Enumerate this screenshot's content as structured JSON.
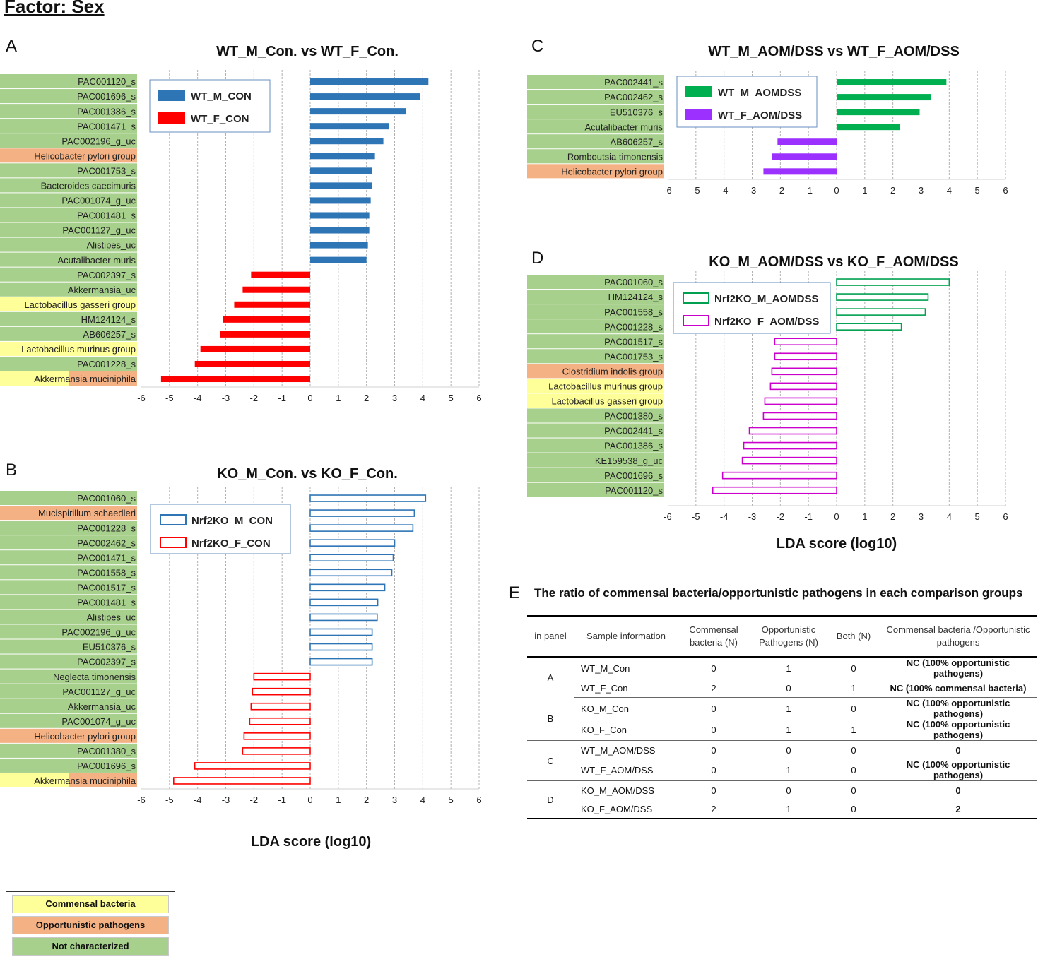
{
  "title": "Factor: Sex",
  "colors": {
    "not_characterized": "#a8d08d",
    "opportunistic": "#f4b183",
    "commensal": "#ffff99",
    "wt_m_con": "#2e75b6",
    "wt_f_con": "#ff0000",
    "wt_m_aomdss": "#00b050",
    "wt_f_aomdss": "#9b30ff",
    "nrf2ko_m_aomdss": "#00a050",
    "nrf2ko_f_aomdss": "#cc00cc"
  },
  "chart_data": [
    {
      "panel": "A",
      "type": "bar",
      "orientation": "horizontal",
      "title": "WT_M_Con. vs WT_F_Con.",
      "xlabel": "",
      "xlim": [
        -6,
        6
      ],
      "xticks": [
        -6,
        -5,
        -4,
        -3,
        -2,
        -1,
        0,
        1,
        2,
        3,
        4,
        5,
        6
      ],
      "grid": true,
      "legend": "top-left",
      "series": [
        {
          "name": "WT_M_CON",
          "style": "filled",
          "color": "#2e75b6"
        },
        {
          "name": "WT_F_CON",
          "style": "filled",
          "color": "#ff0000"
        }
      ],
      "rows": [
        {
          "label": "PAC001120_s",
          "value": 4.2,
          "series": 0,
          "category": "not_characterized"
        },
        {
          "label": "PAC001696_s",
          "value": 3.9,
          "series": 0,
          "category": "not_characterized"
        },
        {
          "label": "PAC001386_s",
          "value": 3.4,
          "series": 0,
          "category": "not_characterized"
        },
        {
          "label": "PAC001471_s",
          "value": 2.8,
          "series": 0,
          "category": "not_characterized"
        },
        {
          "label": "PAC002196_g_uc",
          "value": 2.6,
          "series": 0,
          "category": "not_characterized"
        },
        {
          "label": "Helicobacter pylori group",
          "value": 2.3,
          "series": 0,
          "category": "opportunistic"
        },
        {
          "label": "PAC001753_s",
          "value": 2.2,
          "series": 0,
          "category": "not_characterized"
        },
        {
          "label": "Bacteroides caecimuris",
          "value": 2.2,
          "series": 0,
          "category": "not_characterized"
        },
        {
          "label": "PAC001074_g_uc",
          "value": 2.15,
          "series": 0,
          "category": "not_characterized"
        },
        {
          "label": "PAC001481_s",
          "value": 2.1,
          "series": 0,
          "category": "not_characterized"
        },
        {
          "label": "PAC001127_g_uc",
          "value": 2.1,
          "series": 0,
          "category": "not_characterized"
        },
        {
          "label": "Alistipes_uc",
          "value": 2.05,
          "series": 0,
          "category": "not_characterized"
        },
        {
          "label": "Acutalibacter muris",
          "value": 2.0,
          "series": 0,
          "category": "not_characterized"
        },
        {
          "label": "PAC002397_s",
          "value": -2.1,
          "series": 1,
          "category": "not_characterized"
        },
        {
          "label": "Akkermansia_uc",
          "value": -2.4,
          "series": 1,
          "category": "not_characterized"
        },
        {
          "label": "Lactobacillus gasseri group",
          "value": -2.7,
          "series": 1,
          "category": "commensal"
        },
        {
          "label": "HM124124_s",
          "value": -3.1,
          "series": 1,
          "category": "not_characterized"
        },
        {
          "label": "AB606257_s",
          "value": -3.2,
          "series": 1,
          "category": "not_characterized"
        },
        {
          "label": "Lactobacillus murinus group",
          "value": -3.9,
          "series": 1,
          "category": "commensal"
        },
        {
          "label": "PAC001228_s",
          "value": -4.1,
          "series": 1,
          "category": "not_characterized"
        },
        {
          "label": "Akkermansia muciniphila",
          "value": -5.3,
          "series": 1,
          "category": "commensal_opportunistic"
        }
      ]
    },
    {
      "panel": "B",
      "type": "bar",
      "orientation": "horizontal",
      "title": "KO_M_Con. vs KO_F_Con.",
      "xlabel": "LDA score (log10)",
      "xlim": [
        -6,
        6
      ],
      "xticks": [
        -6,
        -5,
        -4,
        -3,
        -2,
        -1,
        0,
        1,
        2,
        3,
        4,
        5,
        6
      ],
      "grid": true,
      "legend": "top-left",
      "series": [
        {
          "name": "Nrf2KO_M_CON",
          "style": "outline",
          "color": "#2e75b6"
        },
        {
          "name": "Nrf2KO_F_CON",
          "style": "outline",
          "color": "#ff0000"
        }
      ],
      "rows": [
        {
          "label": "PAC001060_s",
          "value": 4.1,
          "series": 0,
          "category": "not_characterized"
        },
        {
          "label": "Mucispirillum schaedleri",
          "value": 3.7,
          "series": 0,
          "category": "opportunistic"
        },
        {
          "label": "PAC001228_s",
          "value": 3.65,
          "series": 0,
          "category": "not_characterized"
        },
        {
          "label": "PAC002462_s",
          "value": 3.0,
          "series": 0,
          "category": "not_characterized"
        },
        {
          "label": "PAC001471_s",
          "value": 2.95,
          "series": 0,
          "category": "not_characterized"
        },
        {
          "label": "PAC001558_s",
          "value": 2.9,
          "series": 0,
          "category": "not_characterized"
        },
        {
          "label": "PAC001517_s",
          "value": 2.65,
          "series": 0,
          "category": "not_characterized"
        },
        {
          "label": "PAC001481_s",
          "value": 2.4,
          "series": 0,
          "category": "not_characterized"
        },
        {
          "label": "Alistipes_uc",
          "value": 2.38,
          "series": 0,
          "category": "not_characterized"
        },
        {
          "label": "PAC002196_g_uc",
          "value": 2.2,
          "series": 0,
          "category": "not_characterized"
        },
        {
          "label": "EU510376_s",
          "value": 2.2,
          "series": 0,
          "category": "not_characterized"
        },
        {
          "label": "PAC002397_s",
          "value": 2.2,
          "series": 0,
          "category": "not_characterized"
        },
        {
          "label": "Neglecta timonensis",
          "value": -2.0,
          "series": 1,
          "category": "not_characterized"
        },
        {
          "label": "PAC001127_g_uc",
          "value": -2.05,
          "series": 1,
          "category": "not_characterized"
        },
        {
          "label": "Akkermansia_uc",
          "value": -2.1,
          "series": 1,
          "category": "not_characterized"
        },
        {
          "label": "PAC001074_g_uc",
          "value": -2.15,
          "series": 1,
          "category": "not_characterized"
        },
        {
          "label": "Helicobacter pylori group",
          "value": -2.35,
          "series": 1,
          "category": "opportunistic"
        },
        {
          "label": "PAC001380_s",
          "value": -2.4,
          "series": 1,
          "category": "not_characterized"
        },
        {
          "label": "PAC001696_s",
          "value": -4.1,
          "series": 1,
          "category": "not_characterized"
        },
        {
          "label": "Akkermansia muciniphila",
          "value": -4.85,
          "series": 1,
          "category": "commensal_opportunistic"
        }
      ]
    },
    {
      "panel": "C",
      "type": "bar",
      "orientation": "horizontal",
      "title": "WT_M_AOM/DSS vs WT_F_AOM/DSS",
      "xlabel": "",
      "xlim": [
        -6,
        6
      ],
      "xticks": [
        -6,
        -5,
        -4,
        -3,
        -2,
        -1,
        0,
        1,
        2,
        3,
        4,
        5,
        6
      ],
      "grid": true,
      "legend": "top-left",
      "series": [
        {
          "name": "WT_M_AOMDSS",
          "style": "filled",
          "color": "#00b050"
        },
        {
          "name": "WT_F_AOM/DSS",
          "style": "filled",
          "color": "#9b30ff"
        }
      ],
      "rows": [
        {
          "label": "PAC002441_s",
          "value": 3.9,
          "series": 0,
          "category": "not_characterized"
        },
        {
          "label": "PAC002462_s",
          "value": 3.35,
          "series": 0,
          "category": "not_characterized"
        },
        {
          "label": "EU510376_s",
          "value": 2.95,
          "series": 0,
          "category": "not_characterized"
        },
        {
          "label": "Acutalibacter muris",
          "value": 2.25,
          "series": 0,
          "category": "not_characterized"
        },
        {
          "label": "AB606257_s",
          "value": -2.1,
          "series": 1,
          "category": "not_characterized"
        },
        {
          "label": "Romboutsia timonensis",
          "value": -2.3,
          "series": 1,
          "category": "not_characterized"
        },
        {
          "label": "Helicobacter pylori group",
          "value": -2.6,
          "series": 1,
          "category": "opportunistic"
        }
      ]
    },
    {
      "panel": "D",
      "type": "bar",
      "orientation": "horizontal",
      "title": "KO_M_AOM/DSS vs KO_F_AOM/DSS",
      "xlabel": "LDA score (log10)",
      "xlim": [
        -6,
        6
      ],
      "xticks": [
        -6,
        -5,
        -4,
        -3,
        -2,
        -1,
        0,
        1,
        2,
        3,
        4,
        5,
        6
      ],
      "grid": true,
      "legend": "top-left",
      "series": [
        {
          "name": "Nrf2KO_M_AOMDSS",
          "style": "outline",
          "color": "#00a050"
        },
        {
          "name": "Nrf2KO_F_AOM/DSS",
          "style": "outline",
          "color": "#cc00cc"
        }
      ],
      "rows": [
        {
          "label": "PAC001060_s",
          "value": 4.0,
          "series": 0,
          "category": "not_characterized"
        },
        {
          "label": "HM124124_s",
          "value": 3.25,
          "series": 0,
          "category": "not_characterized"
        },
        {
          "label": "PAC001558_s",
          "value": 3.15,
          "series": 0,
          "category": "not_characterized"
        },
        {
          "label": "PAC001228_s",
          "value": 2.3,
          "series": 0,
          "category": "not_characterized"
        },
        {
          "label": "PAC001517_s",
          "value": -2.2,
          "series": 1,
          "category": "not_characterized"
        },
        {
          "label": "PAC001753_s",
          "value": -2.2,
          "series": 1,
          "category": "not_characterized"
        },
        {
          "label": "Clostridium indolis group",
          "value": -2.3,
          "series": 1,
          "category": "opportunistic"
        },
        {
          "label": "Lactobacillus murinus group",
          "value": -2.35,
          "series": 1,
          "category": "commensal"
        },
        {
          "label": "Lactobacillus gasseri group",
          "value": -2.55,
          "series": 1,
          "category": "commensal"
        },
        {
          "label": "PAC001380_s",
          "value": -2.6,
          "series": 1,
          "category": "not_characterized"
        },
        {
          "label": "PAC002441_s",
          "value": -3.1,
          "series": 1,
          "category": "not_characterized"
        },
        {
          "label": "PAC001386_s",
          "value": -3.3,
          "series": 1,
          "category": "not_characterized"
        },
        {
          "label": "KE159538_g_uc",
          "value": -3.35,
          "series": 1,
          "category": "not_characterized"
        },
        {
          "label": "PAC001696_s",
          "value": -4.05,
          "series": 1,
          "category": "not_characterized"
        },
        {
          "label": "PAC001120_s",
          "value": -4.4,
          "series": 1,
          "category": "not_characterized"
        }
      ]
    }
  ],
  "table": {
    "panel": "E",
    "title": "The ratio of commensal bacteria/opportunistic pathogens in each comparison groups",
    "headers": {
      "in_panel": "in panel",
      "sample": "Sample information",
      "commensal": "Commensal bacteria (N)",
      "opportunistic": "Opportunistic Pathogens (N)",
      "both": "Both (N)",
      "ratio": "Commensal bacteria /Opportunistic pathogens"
    },
    "groups": [
      {
        "panel": "A",
        "rows": [
          {
            "sample": "WT_M_Con",
            "commensal": "0",
            "opportunistic": "1",
            "both": "0",
            "ratio": "NC (100% opportunistic pathogens)"
          },
          {
            "sample": "WT_F_Con",
            "commensal": "2",
            "opportunistic": "0",
            "both": "1",
            "ratio": "NC (100% commensal bacteria)"
          }
        ]
      },
      {
        "panel": "B",
        "rows": [
          {
            "sample": "KO_M_Con",
            "commensal": "0",
            "opportunistic": "1",
            "both": "0",
            "ratio": "NC (100% opportunistic pathogens)"
          },
          {
            "sample": "KO_F_Con",
            "commensal": "0",
            "opportunistic": "1",
            "both": "1",
            "ratio": "NC (100% opportunistic pathogens)"
          }
        ]
      },
      {
        "panel": "C",
        "rows": [
          {
            "sample": "WT_M_AOM/DSS",
            "commensal": "0",
            "opportunistic": "0",
            "both": "0",
            "ratio": "0"
          },
          {
            "sample": "WT_F_AOM/DSS",
            "commensal": "0",
            "opportunistic": "1",
            "both": "0",
            "ratio": "NC (100% opportunistic pathogens)"
          }
        ]
      },
      {
        "panel": "D",
        "rows": [
          {
            "sample": "KO_M_AOM/DSS",
            "commensal": "0",
            "opportunistic": "0",
            "both": "0",
            "ratio": "0"
          },
          {
            "sample": "KO_F_AOM/DSS",
            "commensal": "2",
            "opportunistic": "1",
            "both": "0",
            "ratio": "2"
          }
        ]
      }
    ]
  },
  "category_legend": [
    {
      "key": "commensal",
      "label": "Commensal bacteria"
    },
    {
      "key": "opportunistic",
      "label": "Opportunistic pathogens"
    },
    {
      "key": "not_characterized",
      "label": "Not characterized"
    }
  ]
}
